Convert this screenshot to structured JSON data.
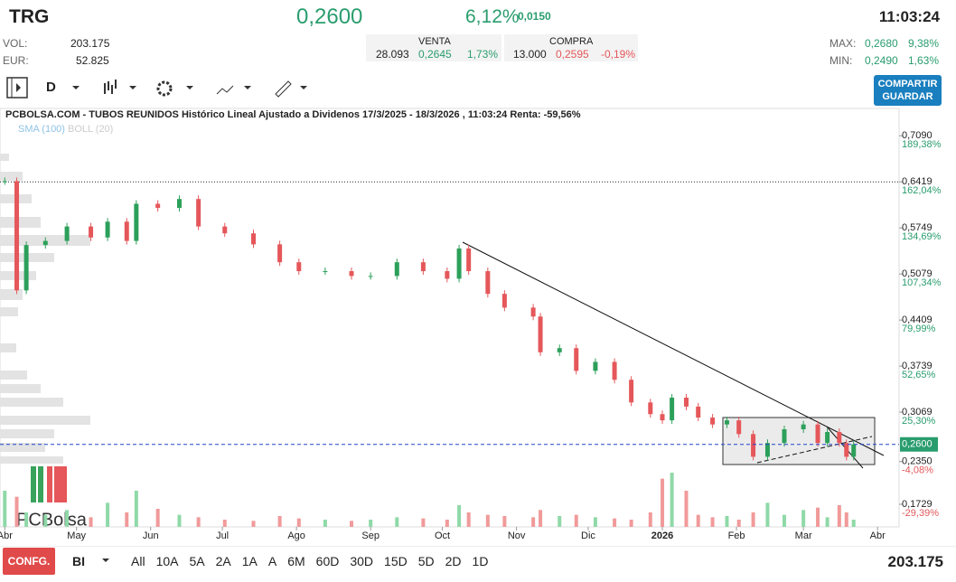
{
  "header": {
    "ticker": "TRG",
    "price": "0,2600",
    "change_pct": "6,12%",
    "change_abs": "0,0150",
    "time": "11:03:24",
    "vol_label": "VOL:",
    "vol": "203.175",
    "eur_label": "EUR:",
    "eur": "52.825",
    "venta": {
      "title": "VENTA",
      "qty": "28.093",
      "price": "0,2645",
      "pct": "1,73%"
    },
    "compra": {
      "title": "COMPRA",
      "qty": "13.000",
      "price": "0,2595",
      "pct": "-0,19%"
    },
    "max_label": "MAX:",
    "max": "0,2680",
    "max_pct": "9,38%",
    "min_label": "MIN:",
    "min": "0,2490",
    "min_pct": "1,63%"
  },
  "toolbar": {
    "interval": "D",
    "button": [
      "COMPARTIR",
      "GUARDAR"
    ]
  },
  "chart_data": {
    "type": "candlestick",
    "title": "PCBOLSA.COM - TUBOS REUNIDOS Histórico Lineal Ajustado a Dividenos 17/3/2025 - 18/3/2026 , 11:03:24 Renta: -59,56%",
    "indicators": [
      "SMA (100)",
      "BOLL (20)"
    ],
    "logo": "PCBolsa",
    "x": [
      15,
      20,
      24,
      32,
      41,
      51,
      58,
      66,
      70,
      79,
      88,
      96,
      107,
      119,
      130,
      138,
      149,
      160,
      168,
      179,
      190,
      200,
      205,
      209,
      217,
      224,
      236,
      239,
      247,
      254,
      262,
      270,
      277,
      285,
      290,
      294,
      300,
      305,
      311,
      317,
      322,
      328,
      334,
      341,
      349,
      355,
      359,
      364,
      367,
      370
    ],
    "values": [
      0.643,
      0.484,
      0.55,
      0.556,
      0.577,
      0.561,
      0.584,
      0.556,
      0.61,
      0.604,
      0.617,
      0.577,
      0.567,
      0.551,
      0.525,
      0.512,
      0.512,
      0.505,
      0.505,
      0.525,
      0.512,
      0.501,
      0.545,
      0.512,
      0.479,
      0.459,
      0.446,
      0.394,
      0.4,
      0.367,
      0.38,
      0.354,
      0.321,
      0.304,
      0.295,
      0.328,
      0.315,
      0.299,
      0.289,
      0.295,
      0.275,
      0.242,
      0.262,
      0.282,
      0.289,
      0.262,
      0.278,
      0.262,
      0.242,
      0.26
    ],
    "volume": [
      30,
      25,
      12,
      10,
      14,
      8,
      20,
      12,
      30,
      15,
      10,
      8,
      6,
      5,
      9,
      7,
      6,
      5,
      6,
      8,
      7,
      6,
      18,
      12,
      10,
      9,
      8,
      14,
      9,
      10,
      8,
      7,
      6,
      12,
      40,
      45,
      30,
      10,
      8,
      9,
      6,
      12,
      20,
      10,
      14,
      16,
      8,
      18,
      12,
      6
    ],
    "xlim": [
      13,
      389
    ],
    "xticks": [
      {
        "value": 15,
        "label": "Abr"
      },
      {
        "value": 45,
        "label": "May"
      },
      {
        "value": 76,
        "label": "Jun"
      },
      {
        "value": 106,
        "label": "Jul"
      },
      {
        "value": 137,
        "label": "Ago"
      },
      {
        "value": 168,
        "label": "Sep"
      },
      {
        "value": 198,
        "label": "Oct"
      },
      {
        "value": 229,
        "label": "Nov"
      },
      {
        "value": 259,
        "label": "Dic"
      },
      {
        "value": 290,
        "label": "2026"
      },
      {
        "value": 321,
        "label": "Feb"
      },
      {
        "value": 349,
        "label": "Mar"
      },
      {
        "value": 380,
        "label": "Abr"
      }
    ],
    "ylim": [
      0.14,
      0.729
    ],
    "yticks": [
      {
        "value": 0.709,
        "label": "0,7090"
      },
      {
        "value": 0.6419,
        "label": "0,6419"
      },
      {
        "value": 0.5749,
        "label": "0,5749"
      },
      {
        "value": 0.5079,
        "label": "0,5079"
      },
      {
        "value": 0.4409,
        "label": "0,4409"
      },
      {
        "value": 0.3739,
        "label": "0,3739"
      },
      {
        "value": 0.3069,
        "label": "0,3069"
      },
      {
        "value": 0.235,
        "label": "0,2350"
      },
      {
        "value": 0.1729,
        "label": "0,1729"
      }
    ],
    "ytick_returns": [
      "189,38%",
      "162,04%",
      "134,69%",
      "107,34%",
      "79,99%",
      "52,65%",
      "25,30%",
      "-4,08%",
      "-29,39%"
    ],
    "last": {
      "value": 0.26,
      "label": "0,2600"
    }
  },
  "footer": {
    "config": "CONFG.",
    "mode": "BI",
    "periods": [
      "All",
      "10A",
      "5A",
      "2A",
      "1A",
      "A",
      "6M",
      "60D",
      "30D",
      "15D",
      "5D",
      "2D",
      "1D"
    ],
    "volume": "203.175"
  }
}
